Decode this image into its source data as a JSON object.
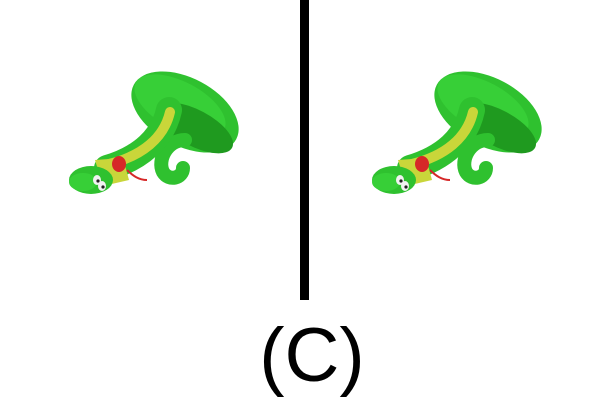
{
  "figure": {
    "caption": "(C)",
    "panels": [
      {
        "icon": "green-snake-icon"
      },
      {
        "icon": "green-snake-icon"
      }
    ],
    "colors": {
      "snake_body": "#2fc12f",
      "snake_dark": "#1f9a1f",
      "snake_belly": "#c9d63a",
      "tongue": "#d62828",
      "divider": "#000000"
    }
  }
}
